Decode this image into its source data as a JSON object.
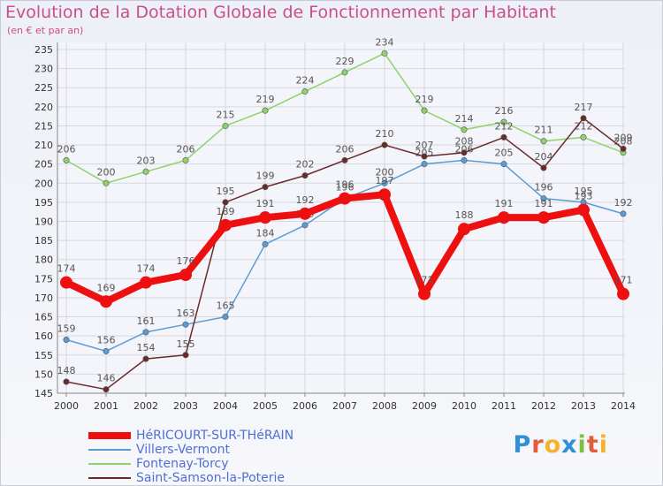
{
  "title": "Evolution de la Dotation Globale de Fonctionnement par Habitant",
  "subtitle": "(en € et par an)",
  "logo_text": "Proxiti",
  "chart_data": {
    "type": "line",
    "title": "Evolution de la Dotation Globale de Fonctionnement par Habitant",
    "subtitle": "(en € et par an)",
    "xlabel": "",
    "ylabel": "",
    "x": [
      "2000",
      "2001",
      "2002",
      "2003",
      "2004",
      "2005",
      "2006",
      "2007",
      "2008",
      "2009",
      "2010",
      "2011",
      "2012",
      "2013",
      "2014"
    ],
    "ylim": [
      145,
      235
    ],
    "yticks": [
      145,
      150,
      155,
      160,
      165,
      170,
      175,
      180,
      185,
      190,
      195,
      200,
      205,
      210,
      215,
      220,
      225,
      230,
      235
    ],
    "grid": true,
    "legend_position": "bottom-left",
    "series": [
      {
        "name": "Villers-Vermont",
        "color": "#5b9bd5",
        "values": [
          159,
          156,
          161,
          163,
          165,
          184,
          189,
          196,
          200,
          205,
          206,
          205,
          196,
          195,
          192
        ],
        "labels": [
          "159",
          "156",
          "161",
          "163",
          "165",
          "184",
          "189",
          "196",
          "200",
          "205",
          "206",
          "205",
          "196",
          "195",
          "192"
        ]
      },
      {
        "name": "Fontenay-Torcy",
        "color": "#8fd16a",
        "values": [
          206,
          200,
          203,
          206,
          215,
          219,
          224,
          229,
          234,
          219,
          214,
          216,
          211,
          212,
          208
        ],
        "labels": [
          "206",
          "200",
          "203",
          "206",
          "215",
          "219",
          "224",
          "229",
          "234",
          "219",
          "214",
          "216",
          "211",
          "212",
          "208"
        ]
      },
      {
        "name": "Saint-Samson-la-Poterie",
        "color": "#6b2a2a",
        "values": [
          148,
          146,
          154,
          155,
          195,
          199,
          202,
          206,
          210,
          207,
          208,
          212,
          204,
          217,
          209
        ],
        "labels": [
          "148",
          "146",
          "154",
          "155",
          "195",
          "199",
          "202",
          "206",
          "210",
          "207",
          "208",
          "212",
          "204",
          "217",
          "209"
        ]
      },
      {
        "name": "HéRICOURT-SUR-THéRAIN",
        "color": "#ee1010",
        "values": [
          174,
          169,
          174,
          176,
          189,
          191,
          192,
          196,
          197,
          171,
          188,
          191,
          191,
          193,
          171
        ],
        "labels": [
          "174",
          "169",
          "174",
          "176",
          "189",
          "191",
          "192",
          "196",
          "197",
          "171",
          "188",
          "191",
          "191",
          "193",
          "171"
        ]
      }
    ],
    "legend_order": [
      "HéRICOURT-SUR-THéRAIN",
      "Villers-Vermont",
      "Fontenay-Torcy",
      "Saint-Samson-la-Poterie"
    ]
  }
}
